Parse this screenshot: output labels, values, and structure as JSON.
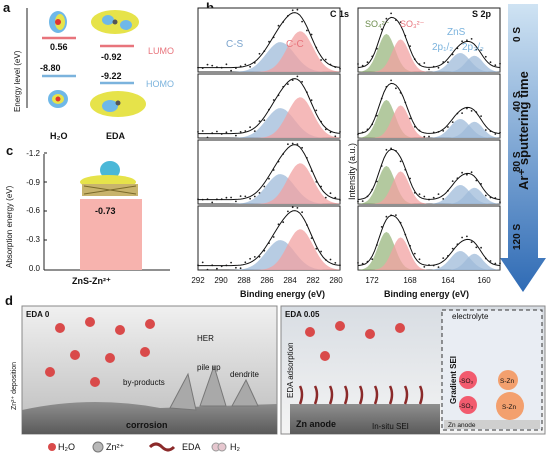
{
  "panel_labels": {
    "a": "a",
    "b": "b",
    "c": "c",
    "d": "d"
  },
  "panel_a": {
    "ylabel": "Energy level (eV)",
    "h2o": {
      "name": "H₂O",
      "lumo": "0.56",
      "homo": "-8.80"
    },
    "eda": {
      "name": "EDA",
      "lumo": "-0.92",
      "homo": "-9.22"
    },
    "lumo_label": "LUMO",
    "homo_label": "HOMO",
    "colors": {
      "lumo": "#e8747c",
      "homo": "#7bb3dd",
      "orbital": "#e6e34a"
    }
  },
  "panel_c": {
    "ylabel": "Absorption energy (eV)",
    "bar_label": "-0.73",
    "xlabel": "ZnS-Zn²⁺",
    "ticks": [
      "-1.2",
      "-0.9",
      "-0.6",
      "-0.3",
      "0.0"
    ],
    "bar_color": "#f7b3ae"
  },
  "panel_b": {
    "ylabel": "Intensity (a.u.)",
    "c1s": {
      "title": "C 1s",
      "xlabel": "Binding energy (eV)",
      "ticks": [
        "292",
        "290",
        "288",
        "286",
        "284",
        "282",
        "280"
      ],
      "peak1": "C-S",
      "peak2": "C-C"
    },
    "s2p": {
      "title": "S 2p",
      "xlabel": "Binding energy (eV)",
      "ticks": [
        "172",
        "168",
        "164",
        "160"
      ],
      "so4": "SO₄²⁻",
      "so3": "SO₃²⁻",
      "zns": "ZnS",
      "p12": "2p₁/₂",
      "p32": "2p₃/₂"
    }
  },
  "sputter": {
    "title": "Ar⁺ sputtering time",
    "times": [
      "0 S",
      "40 S",
      "80 S",
      "120 S"
    ]
  },
  "panel_d": {
    "left": {
      "tag": "EDA 0",
      "her": "HER",
      "pileup": "pile up",
      "byproducts": "by-products",
      "dendrite": "dendrite",
      "deposition": "Zn²⁺ deposition",
      "corrosion": "corrosion"
    },
    "right": {
      "tag": "EDA 0.05",
      "adsorption": "EDA adsorption",
      "anode": "Zn anode",
      "insitu": "In-situ SEI",
      "electrolyte": "electrolyte",
      "gradient": "Gradient SEI",
      "so3a": "-SO₃",
      "so3b": "-SO₃",
      "szn1": "S-Zn",
      "szn2": "S-Zn",
      "anode2": "Zn anode"
    },
    "legend": {
      "h2o": "H₂O",
      "zn": "Zn²⁺",
      "eda": "EDA",
      "h2": "H₂"
    }
  }
}
